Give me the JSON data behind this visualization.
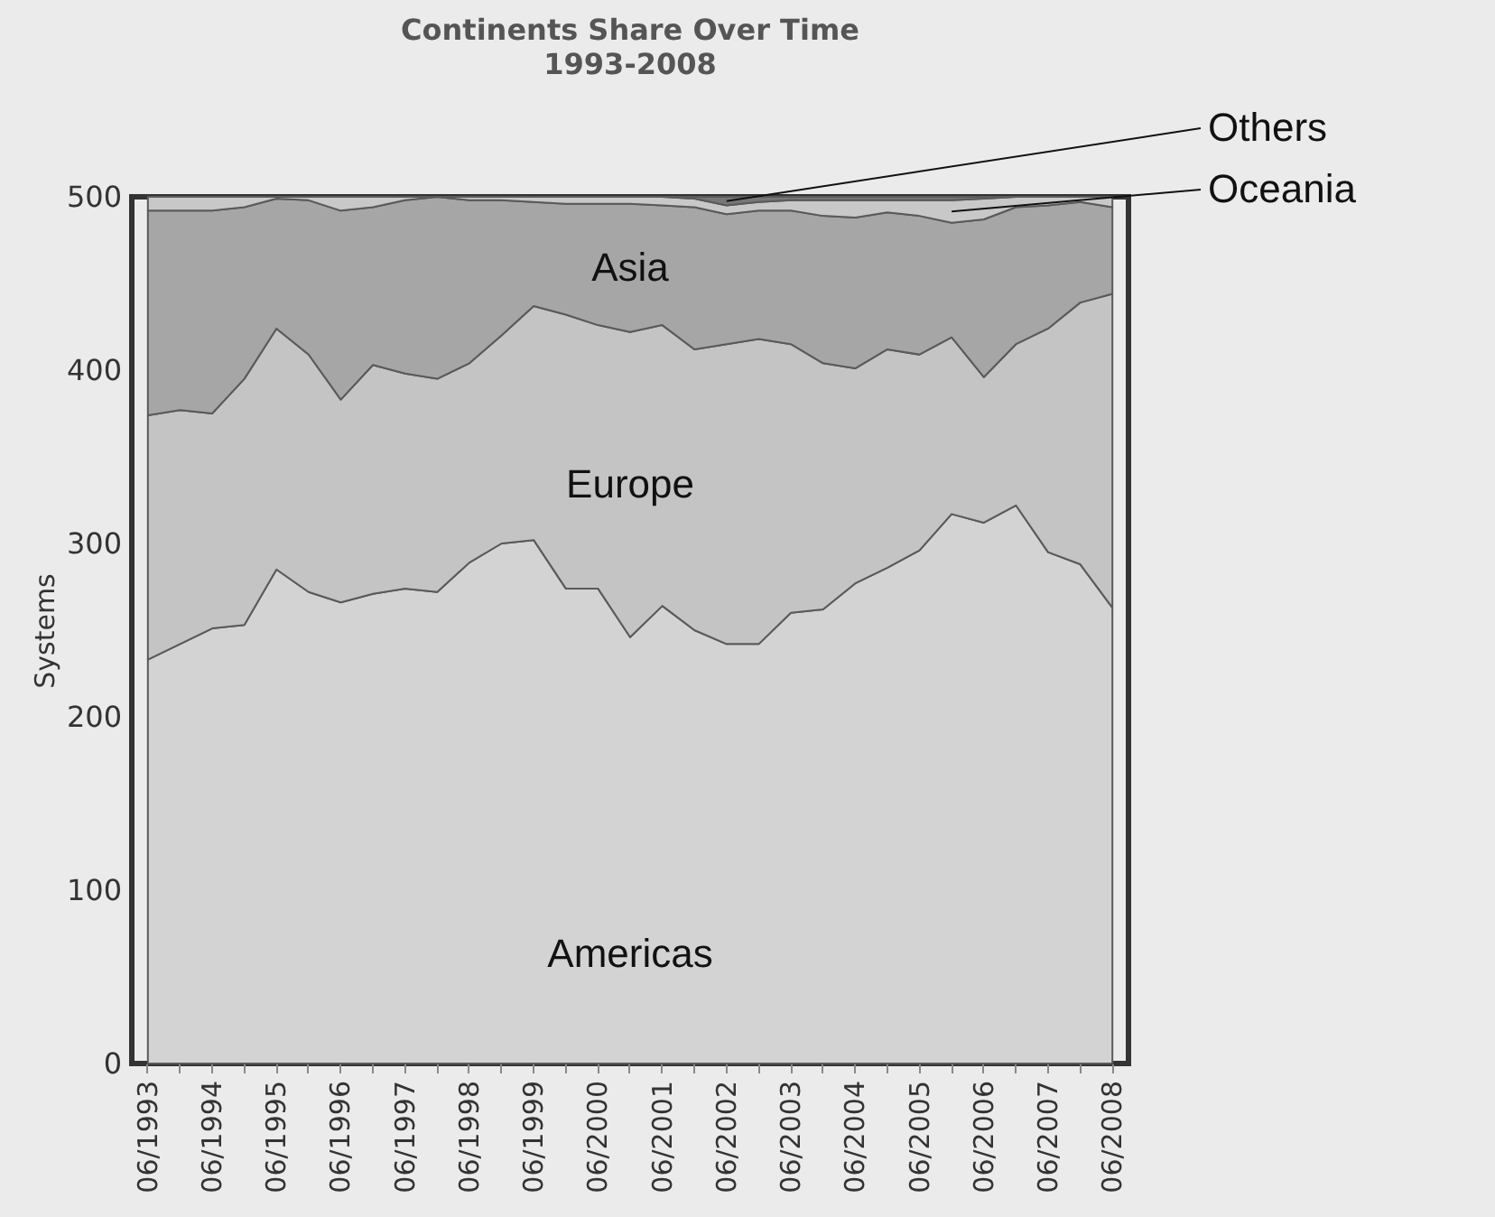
{
  "chart_data": {
    "type": "area",
    "stacked": true,
    "title": "Continents Share Over Time",
    "subtitle": "1993-2008",
    "ylabel": "Systems",
    "categories": [
      "06/1993",
      null,
      "06/1994",
      null,
      "06/1995",
      null,
      "06/1996",
      null,
      "06/1997",
      null,
      "06/1998",
      null,
      "06/1999",
      null,
      "06/2000",
      null,
      "06/2001",
      null,
      "06/2002",
      null,
      "06/2003",
      null,
      "06/2004",
      null,
      "06/2005",
      null,
      "06/2006",
      null,
      "06/2007",
      null,
      "06/2008"
    ],
    "ylim": [
      0,
      500
    ],
    "yticks": [
      0,
      100,
      200,
      300,
      400,
      500
    ],
    "grid": false,
    "series": [
      {
        "name": "Americas",
        "color": "#d3d3d3",
        "values": [
          233,
          242,
          251,
          253,
          285,
          272,
          266,
          271,
          274,
          272,
          289,
          300,
          302,
          274,
          274,
          246,
          264,
          250,
          242,
          242,
          260,
          262,
          277,
          286,
          296,
          317,
          312,
          322,
          295,
          288,
          263
        ]
      },
      {
        "name": "Europe",
        "color": "#c4c4c4",
        "values": [
          141,
          135,
          124,
          142,
          139,
          137,
          117,
          132,
          124,
          123,
          115,
          120,
          135,
          158,
          152,
          176,
          162,
          162,
          173,
          176,
          155,
          142,
          124,
          126,
          113,
          102,
          84,
          93,
          129,
          151,
          181
        ]
      },
      {
        "name": "Asia",
        "color": "#a6a6a6",
        "values": [
          118,
          115,
          117,
          99,
          75,
          89,
          109,
          91,
          100,
          105,
          94,
          78,
          60,
          64,
          70,
          74,
          69,
          82,
          75,
          74,
          77,
          85,
          87,
          79,
          80,
          66,
          91,
          79,
          71,
          58,
          50
        ]
      },
      {
        "name": "Oceania",
        "color": "#c8c8c8",
        "values": [
          8,
          8,
          8,
          6,
          1,
          2,
          8,
          6,
          2,
          0,
          2,
          2,
          3,
          4,
          4,
          4,
          5,
          5,
          5,
          5,
          6,
          9,
          10,
          7,
          9,
          13,
          12,
          6,
          5,
          3,
          6
        ]
      },
      {
        "name": "Others",
        "color": "#777777",
        "values": [
          0,
          0,
          0,
          0,
          0,
          0,
          0,
          0,
          0,
          0,
          0,
          0,
          0,
          0,
          0,
          0,
          0,
          1,
          5,
          3,
          2,
          2,
          2,
          2,
          2,
          2,
          1,
          0,
          0,
          0,
          0
        ]
      }
    ]
  }
}
